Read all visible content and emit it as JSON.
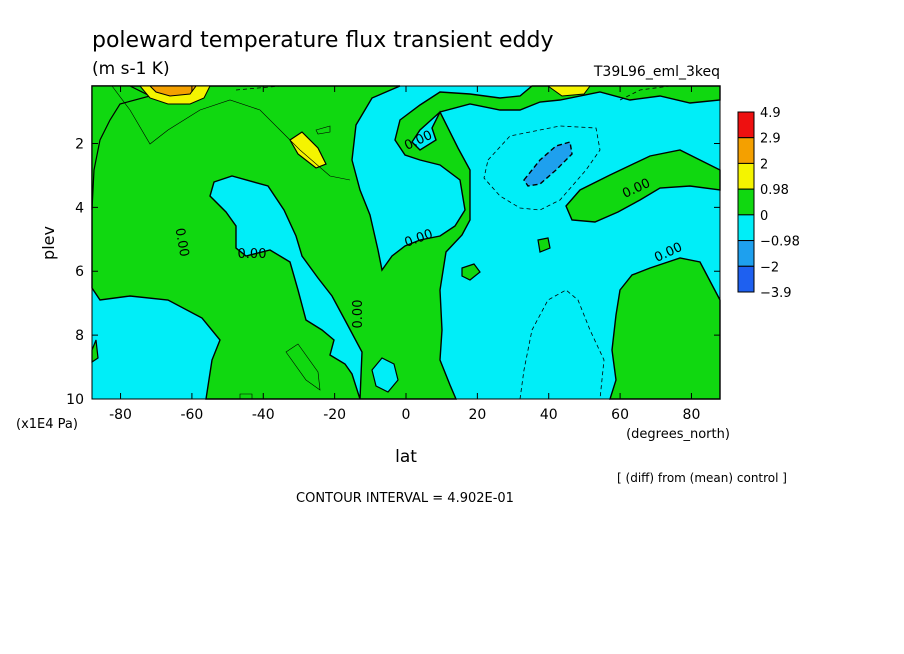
{
  "chart_data": {
    "type": "heatmap",
    "title": "poleward temperature flux transient eddy",
    "units": "(m s-1 K)",
    "run_label": "T39L96_eml_3keq",
    "xlabel": "lat",
    "x_unit_label": "(degrees_north)",
    "ylabel": "plev",
    "y_unit_label": "(x1E4 Pa)",
    "xlim": [
      -88,
      88
    ],
    "ylim": [
      10,
      0.2
    ],
    "y_reversed": true,
    "x_ticks": [
      -80,
      -60,
      -40,
      -20,
      0,
      20,
      40,
      60,
      80
    ],
    "y_ticks": [
      2,
      4,
      6,
      8,
      10
    ],
    "contour_labels": [
      "0.00",
      "0.00",
      "0.00",
      "0.00",
      "0.00",
      "0.00",
      "0.00",
      "0.00"
    ],
    "contour_interval_text": "CONTOUR INTERVAL = 4.902E-01",
    "diff_note": "[ (diff) from (mean) control ]",
    "colorbar": {
      "levels": [
        "4.9",
        "2.9",
        "2",
        "0.98",
        "0",
        "-0.98",
        "-2",
        "-3.9"
      ],
      "colors": [
        "#ee1010",
        "#f4a000",
        "#f4f400",
        "#10d810",
        "#00eef8",
        "#1ea0ee",
        "#1e60f0"
      ]
    },
    "regions": [
      {
        "name": "green-band-south",
        "color_index": 3
      },
      {
        "name": "green-band-center",
        "color_index": 3
      },
      {
        "name": "green-patch-north",
        "color_index": 3
      },
      {
        "name": "yellow-max-south",
        "color_index": 2
      },
      {
        "name": "orange-max-south",
        "color_index": 1
      },
      {
        "name": "yellow-max-north",
        "color_index": 2
      },
      {
        "name": "blue-min-north",
        "color_index": 5
      }
    ],
    "grid": false
  }
}
